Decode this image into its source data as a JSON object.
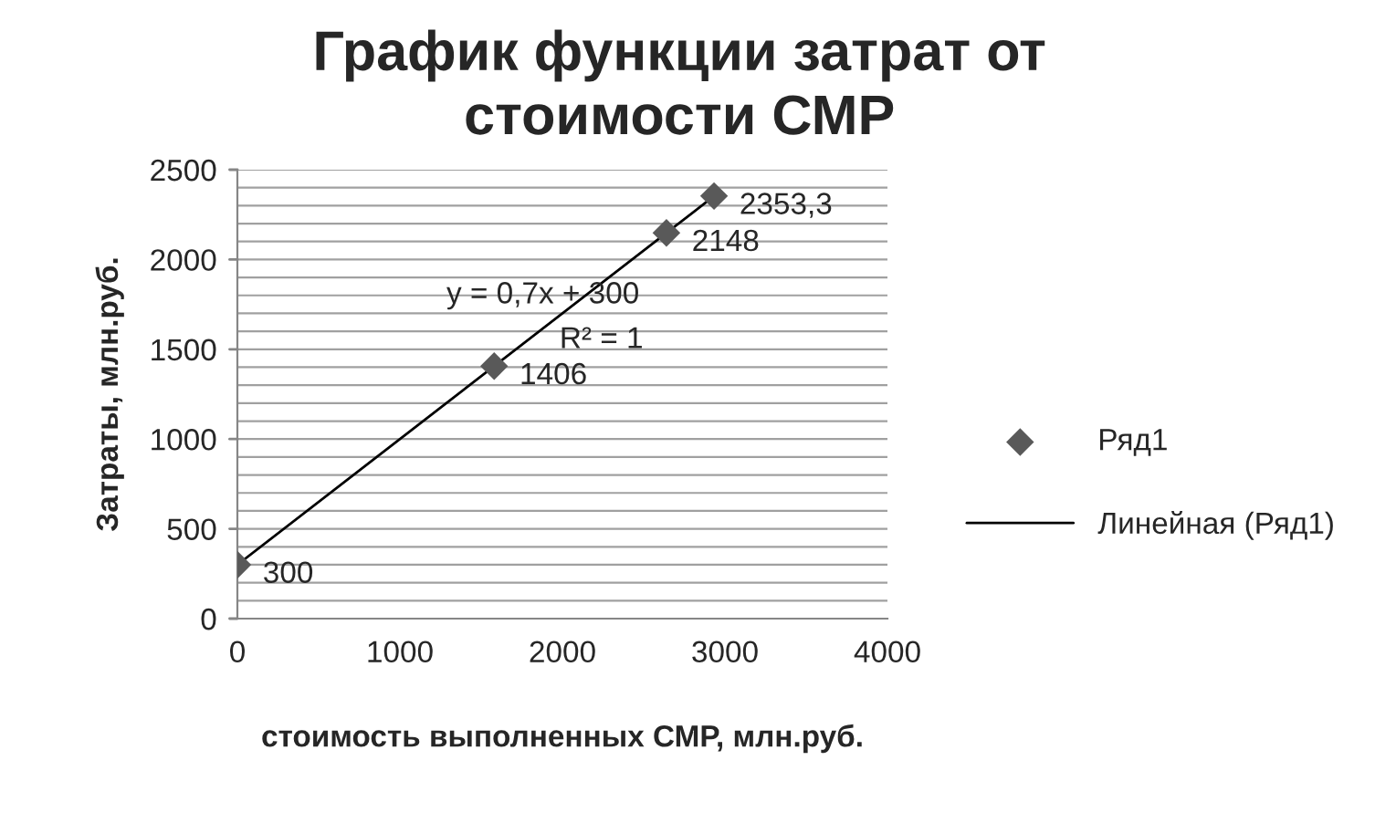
{
  "chart_data": {
    "type": "scatter",
    "title": "График функции затрат от\nстоимости СМР",
    "xlabel": "стоимость выполненных СМР, млн.руб.",
    "ylabel": "Затраты, млн.руб.",
    "series": [
      {
        "name": "Ряд1",
        "color": "#595959",
        "marker": "diamond",
        "x": [
          0,
          1580,
          2640,
          2933
        ],
        "values": [
          300,
          1406,
          2148,
          2353.3
        ],
        "value_labels": [
          "300",
          "1406",
          "2148",
          "2353,3"
        ]
      },
      {
        "name": "Линейная (Ряд1)",
        "type": "line",
        "color": "#000000",
        "marker": "none",
        "line_style": "solid",
        "x": [
          0,
          2933
        ],
        "values": [
          300,
          2353
        ]
      }
    ],
    "annotations": [
      "y = 0,7x + 300",
      "R² = 1"
    ],
    "xlim": [
      0,
      4000
    ],
    "xticks": [
      0,
      1000,
      2000,
      3000,
      4000
    ],
    "ylim": [
      0,
      2500
    ],
    "yticks": [
      0,
      {
        "value": 100,
        "label": null
      },
      {
        "value": 200,
        "label": null
      },
      {
        "value": 300,
        "label": null
      },
      {
        "value": 400,
        "label": null
      },
      500,
      {
        "value": 600,
        "label": null
      },
      {
        "value": 700,
        "label": null
      },
      {
        "value": 800,
        "label": null
      },
      {
        "value": 900,
        "label": null
      },
      1000,
      {
        "value": 1100,
        "label": null
      },
      {
        "value": 1200,
        "label": null
      },
      {
        "value": 1300,
        "label": null
      },
      {
        "value": 1400,
        "label": null
      },
      1500,
      {
        "value": 1600,
        "label": null
      },
      {
        "value": 1700,
        "label": null
      },
      {
        "value": 1800,
        "label": null
      },
      {
        "value": 1900,
        "label": null
      },
      2000,
      {
        "value": 2100,
        "label": null
      },
      {
        "value": 2200,
        "label": null
      },
      {
        "value": 2300,
        "label": null
      },
      {
        "value": 2400,
        "label": null
      },
      2500
    ],
    "grid": "y",
    "legend": "right"
  }
}
